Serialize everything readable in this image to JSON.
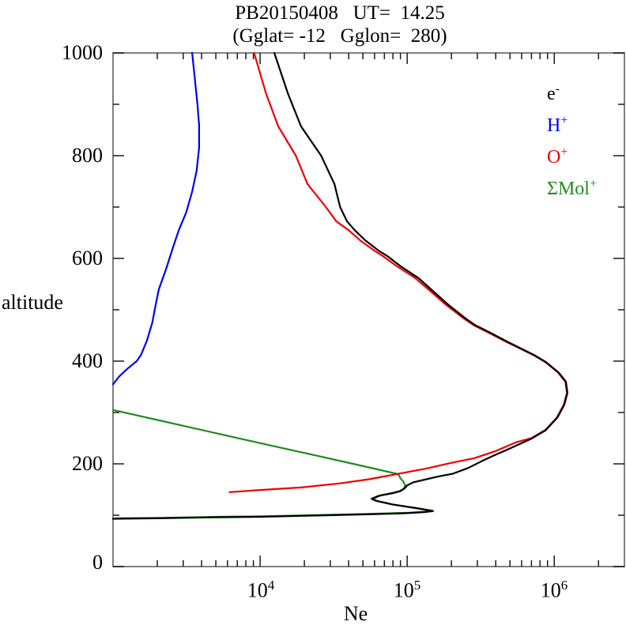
{
  "title": {
    "line1": "PB20150408   UT=  14.25",
    "line2": "(Gglat= -12   Gglon=  280)"
  },
  "axis_titles": {
    "y": "altitude",
    "x": "Ne"
  },
  "y_tick_labels": [
    "1000",
    "800",
    "600",
    "400",
    "200",
    "0"
  ],
  "x_tick_labels": [
    {
      "base": "10",
      "exp": "4"
    },
    {
      "base": "10",
      "exp": "5"
    },
    {
      "base": "10",
      "exp": "6"
    }
  ],
  "legend": [
    {
      "base": "e",
      "sup": "-",
      "color": "#000000",
      "series": "electrons"
    },
    {
      "base": "H",
      "sup": "+",
      "color": "#0000ee",
      "series": "hydrogen-ions"
    },
    {
      "base": "O",
      "sup": "+",
      "color": "#ee0000",
      "series": "oxygen-ions"
    },
    {
      "base": "ΣMol",
      "sup": "+",
      "color": "#228b22",
      "series": "molecular-ions"
    }
  ],
  "frame_color": "#808080",
  "tick_color": "#1a1a1a",
  "chart_data": {
    "type": "line",
    "title": "PB20150408 UT= 14.25 (Gglat= -12 Gglon= 280)",
    "xlabel": "Ne",
    "ylabel": "altitude",
    "x_scale": "log",
    "xlim": [
      1000,
      3000000
    ],
    "ylim": [
      0,
      1000
    ],
    "x_major_ticks": [
      10000,
      100000,
      1000000
    ],
    "y_major_ticks": [
      0,
      200,
      400,
      600,
      800,
      1000
    ],
    "y_minor_ticks": [
      100,
      300,
      500,
      700,
      900
    ],
    "grid": false,
    "legend_position": "upper right inside",
    "series": [
      {
        "name": "molecular-ions",
        "label": "ΣMol+",
        "color": "#228b22",
        "points": [
          [
            1050,
            94
          ],
          [
            2100,
            95
          ],
          [
            5200,
            97
          ],
          [
            10500,
            98
          ],
          [
            31000,
            101
          ],
          [
            62000,
            103
          ],
          [
            103000,
            105
          ],
          [
            133000,
            107
          ],
          [
            148000,
            109
          ],
          [
            118000,
            113
          ],
          [
            79000,
            121
          ],
          [
            61000,
            128
          ],
          [
            57000,
            132
          ],
          [
            64000,
            138
          ],
          [
            79000,
            143
          ],
          [
            89000,
            147
          ],
          [
            95000,
            152
          ],
          [
            97000,
            158
          ],
          [
            94000,
            166
          ],
          [
            90000,
            172
          ],
          [
            87000,
            180
          ],
          [
            43000,
            200
          ],
          [
            17500,
            225
          ],
          [
            8500,
            245
          ],
          [
            4000,
            266
          ],
          [
            1900,
            287
          ],
          [
            1000,
            305
          ]
        ]
      },
      {
        "name": "hydrogen-ions",
        "label": "H+",
        "color": "#0000ee",
        "points": [
          [
            1000,
            355
          ],
          [
            1100,
            370
          ],
          [
            1250,
            385
          ],
          [
            1450,
            400
          ],
          [
            1550,
            412
          ],
          [
            1700,
            440
          ],
          [
            1850,
            475
          ],
          [
            1950,
            510
          ],
          [
            2050,
            540
          ],
          [
            2300,
            580
          ],
          [
            2550,
            620
          ],
          [
            2800,
            655
          ],
          [
            3150,
            690
          ],
          [
            3450,
            730
          ],
          [
            3700,
            770
          ],
          [
            3850,
            815
          ],
          [
            3850,
            860
          ],
          [
            3750,
            900
          ],
          [
            3600,
            950
          ],
          [
            3450,
            1000
          ]
        ]
      },
      {
        "name": "oxygen-ions",
        "label": "O+",
        "color": "#ee0000",
        "points": [
          [
            6200,
            145
          ],
          [
            10000,
            149
          ],
          [
            19000,
            154
          ],
          [
            35000,
            162
          ],
          [
            55000,
            170
          ],
          [
            85000,
            180
          ],
          [
            135000,
            191
          ],
          [
            200000,
            202
          ],
          [
            285000,
            211
          ],
          [
            400000,
            225
          ],
          [
            550000,
            242
          ],
          [
            700000,
            250
          ],
          [
            870000,
            266
          ],
          [
            1040000,
            290
          ],
          [
            1160000,
            315
          ],
          [
            1220000,
            338
          ],
          [
            1190000,
            360
          ],
          [
            1060000,
            378
          ],
          [
            870000,
            398
          ],
          [
            730000,
            411
          ],
          [
            590000,
            424
          ],
          [
            475000,
            437
          ],
          [
            360000,
            455
          ],
          [
            283000,
            470
          ],
          [
            243000,
            483
          ],
          [
            183000,
            510
          ],
          [
            139000,
            540
          ],
          [
            113000,
            562
          ],
          [
            85000,
            585
          ],
          [
            68000,
            605
          ],
          [
            60000,
            615
          ],
          [
            48000,
            635
          ],
          [
            40000,
            655
          ],
          [
            33000,
            672
          ],
          [
            28000,
            700
          ],
          [
            21000,
            745
          ],
          [
            17500,
            800
          ],
          [
            13300,
            857
          ],
          [
            11000,
            920
          ],
          [
            9100,
            1000
          ]
        ]
      },
      {
        "name": "electrons",
        "label": "e-",
        "color": "#000000",
        "points": [
          [
            1000,
            93
          ],
          [
            2000,
            94
          ],
          [
            5000,
            96
          ],
          [
            10000,
            97
          ],
          [
            30000,
            100
          ],
          [
            60000,
            102
          ],
          [
            100000,
            104
          ],
          [
            130000,
            106
          ],
          [
            150000,
            108
          ],
          [
            120000,
            113
          ],
          [
            80000,
            121
          ],
          [
            62000,
            128
          ],
          [
            58000,
            132
          ],
          [
            65000,
            138
          ],
          [
            80000,
            143
          ],
          [
            90000,
            147
          ],
          [
            96000,
            152
          ],
          [
            100000,
            158
          ],
          [
            110000,
            164
          ],
          [
            135000,
            170
          ],
          [
            160000,
            175
          ],
          [
            205000,
            181
          ],
          [
            260000,
            192
          ],
          [
            320000,
            205
          ],
          [
            380000,
            215
          ],
          [
            500000,
            230
          ],
          [
            700000,
            249
          ],
          [
            870000,
            265
          ],
          [
            1050000,
            290
          ],
          [
            1170000,
            315
          ],
          [
            1230000,
            338
          ],
          [
            1200000,
            360
          ],
          [
            1070000,
            378
          ],
          [
            880000,
            398
          ],
          [
            740000,
            411
          ],
          [
            600000,
            424
          ],
          [
            485000,
            437
          ],
          [
            370000,
            455
          ],
          [
            290000,
            470
          ],
          [
            250000,
            483
          ],
          [
            190000,
            510
          ],
          [
            145000,
            540
          ],
          [
            119000,
            562
          ],
          [
            90000,
            585
          ],
          [
            73000,
            605
          ],
          [
            64000,
            615
          ],
          [
            52000,
            635
          ],
          [
            44000,
            655
          ],
          [
            39000,
            672
          ],
          [
            35000,
            700
          ],
          [
            32000,
            745
          ],
          [
            26000,
            800
          ],
          [
            19000,
            857
          ],
          [
            15500,
            920
          ],
          [
            12500,
            1000
          ]
        ]
      }
    ]
  }
}
